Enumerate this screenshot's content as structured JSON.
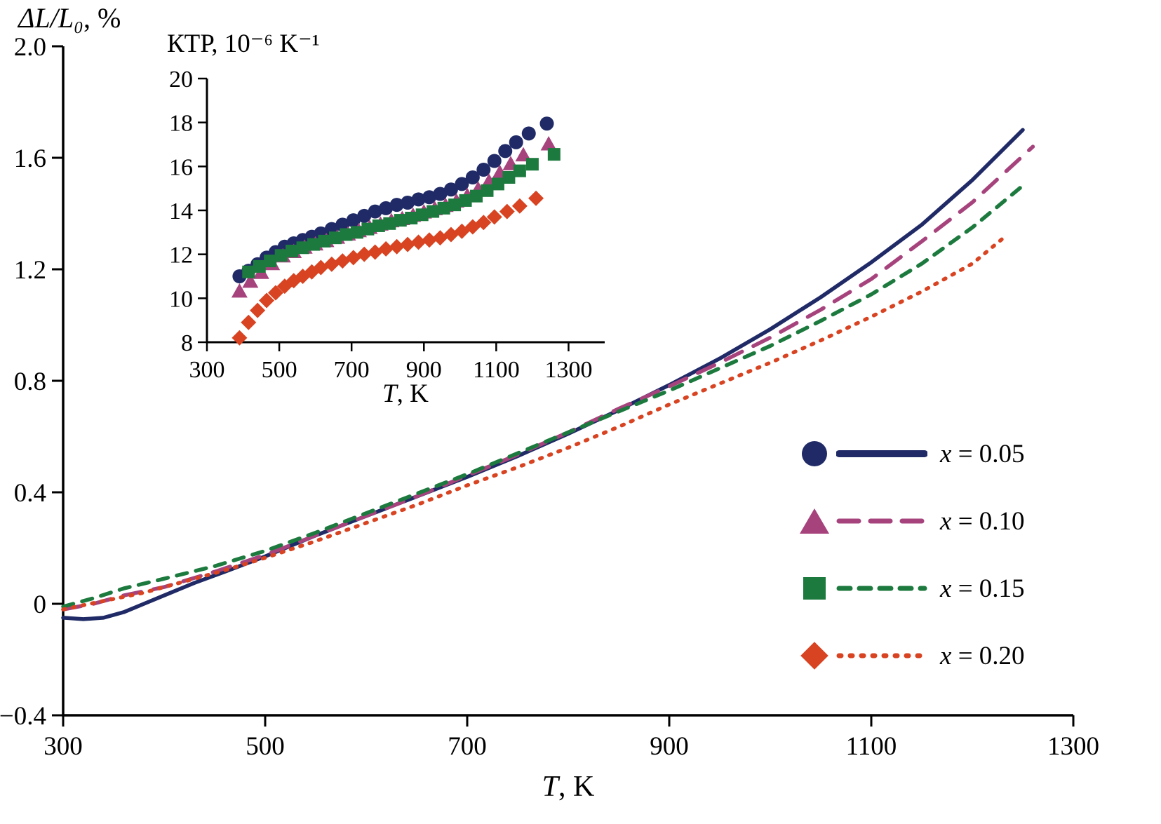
{
  "labels": {
    "main_ylabel_var": "ΔL/L₀",
    "main_ylabel_rest": ", %",
    "main_xlabel_var": "T",
    "main_xlabel_rest": ", K",
    "inset_title": "КТР, 10⁻⁶ K⁻¹",
    "inset_xlabel_var": "T",
    "inset_xlabel_rest": ", K"
  },
  "legend": {
    "items": [
      {
        "var": "x",
        "rest": " = 0.05",
        "marker": "circle",
        "color": "#1f2a66",
        "dash": "",
        "line_width": 10
      },
      {
        "var": "x",
        "rest": " = 0.10",
        "marker": "triangle",
        "color": "#a6437d",
        "dash": "28 17",
        "line_width": 7
      },
      {
        "var": "x",
        "rest": " = 0.15",
        "marker": "square",
        "color": "#1d7a3e",
        "dash": "16 13",
        "line_width": 7
      },
      {
        "var": "x",
        "rest": " = 0.20",
        "marker": "diamond",
        "color": "#d84321",
        "dash": "3 13",
        "line_width": 7
      }
    ]
  },
  "chart_data": [
    {
      "type": "line",
      "title": "",
      "xlabel": "T, K",
      "ylabel": "ΔL/L₀, %",
      "xlim": [
        300,
        1300
      ],
      "ylim": [
        -0.4,
        2.0
      ],
      "grid": false,
      "legend_position": "right-middle",
      "xticks": [
        300,
        500,
        700,
        900,
        1100,
        1300
      ],
      "xtick_labels": [
        "300",
        "500",
        "700",
        "900",
        "1100",
        "1300"
      ],
      "yticks": [
        -0.4,
        0,
        0.4,
        0.8,
        1.2,
        1.6,
        2.0
      ],
      "ytick_labels": [
        "−0.4",
        "0",
        "0.4",
        "0.8",
        "1.2",
        "1.6",
        "2.0"
      ],
      "series": [
        {
          "name": "x = 0.05",
          "color": "#1f2a66",
          "style": "solid",
          "width": 5.5,
          "dash": "",
          "points": [
            [
              300,
              -0.05
            ],
            [
              320,
              -0.055
            ],
            [
              340,
              -0.05
            ],
            [
              360,
              -0.03
            ],
            [
              380,
              0.0
            ],
            [
              400,
              0.03
            ],
            [
              430,
              0.075
            ],
            [
              460,
              0.115
            ],
            [
              500,
              0.17
            ],
            [
              550,
              0.245
            ],
            [
              600,
              0.315
            ],
            [
              650,
              0.385
            ],
            [
              700,
              0.455
            ],
            [
              750,
              0.53
            ],
            [
              800,
              0.61
            ],
            [
              850,
              0.695
            ],
            [
              900,
              0.785
            ],
            [
              950,
              0.88
            ],
            [
              1000,
              0.985
            ],
            [
              1050,
              1.1
            ],
            [
              1100,
              1.225
            ],
            [
              1150,
              1.36
            ],
            [
              1200,
              1.52
            ],
            [
              1250,
              1.7
            ]
          ]
        },
        {
          "name": "x = 0.10",
          "color": "#a6437d",
          "style": "dashed",
          "width": 5.5,
          "dash": "26 18",
          "points": [
            [
              300,
              -0.02
            ],
            [
              330,
              0.0
            ],
            [
              360,
              0.03
            ],
            [
              400,
              0.06
            ],
            [
              450,
              0.115
            ],
            [
              500,
              0.175
            ],
            [
              550,
              0.245
            ],
            [
              600,
              0.315
            ],
            [
              650,
              0.385
            ],
            [
              700,
              0.46
            ],
            [
              750,
              0.535
            ],
            [
              800,
              0.615
            ],
            [
              850,
              0.7
            ],
            [
              900,
              0.78
            ],
            [
              950,
              0.865
            ],
            [
              1000,
              0.955
            ],
            [
              1050,
              1.055
            ],
            [
              1100,
              1.165
            ],
            [
              1150,
              1.3
            ],
            [
              1200,
              1.44
            ],
            [
              1260,
              1.64
            ]
          ]
        },
        {
          "name": "x = 0.15",
          "color": "#1d7a3e",
          "style": "dashed",
          "width": 5.5,
          "dash": "15 13",
          "points": [
            [
              300,
              -0.01
            ],
            [
              330,
              0.02
            ],
            [
              360,
              0.055
            ],
            [
              400,
              0.09
            ],
            [
              450,
              0.135
            ],
            [
              500,
              0.19
            ],
            [
              550,
              0.255
            ],
            [
              600,
              0.325
            ],
            [
              650,
              0.395
            ],
            [
              700,
              0.465
            ],
            [
              750,
              0.54
            ],
            [
              800,
              0.615
            ],
            [
              850,
              0.69
            ],
            [
              900,
              0.765
            ],
            [
              950,
              0.845
            ],
            [
              1000,
              0.925
            ],
            [
              1050,
              1.015
            ],
            [
              1100,
              1.11
            ],
            [
              1150,
              1.22
            ],
            [
              1200,
              1.35
            ],
            [
              1250,
              1.5
            ]
          ]
        },
        {
          "name": "x = 0.20",
          "color": "#d84321",
          "style": "dotted",
          "width": 5.5,
          "dash": "3 11",
          "points": [
            [
              300,
              -0.02
            ],
            [
              340,
              0.01
            ],
            [
              380,
              0.04
            ],
            [
              420,
              0.08
            ],
            [
              460,
              0.12
            ],
            [
              500,
              0.165
            ],
            [
              550,
              0.225
            ],
            [
              600,
              0.29
            ],
            [
              650,
              0.355
            ],
            [
              700,
              0.425
            ],
            [
              750,
              0.49
            ],
            [
              800,
              0.56
            ],
            [
              850,
              0.635
            ],
            [
              900,
              0.715
            ],
            [
              950,
              0.79
            ],
            [
              1000,
              0.865
            ],
            [
              1050,
              0.945
            ],
            [
              1100,
              1.03
            ],
            [
              1150,
              1.12
            ],
            [
              1200,
              1.22
            ],
            [
              1230,
              1.31
            ]
          ]
        }
      ]
    },
    {
      "type": "scatter",
      "title": "КТР, 10⁻⁶ K⁻¹",
      "xlabel": "T, K",
      "ylabel": "КТР, 10⁻⁶ K⁻¹",
      "xlim": [
        300,
        1400
      ],
      "ylim": [
        8,
        20
      ],
      "grid": false,
      "xticks": [
        300,
        500,
        700,
        900,
        1100,
        1300
      ],
      "xtick_labels": [
        "300",
        "500",
        "700",
        "900",
        "1100",
        "1300"
      ],
      "yticks": [
        8,
        10,
        12,
        14,
        16,
        18,
        20
      ],
      "ytick_labels": [
        "8",
        "10",
        "12",
        "14",
        "16",
        "18",
        "20"
      ],
      "series": [
        {
          "name": "x = 0.05",
          "color": "#1f2a66",
          "marker": "circle",
          "points": [
            [
              390,
              11.0
            ],
            [
              415,
              11.25
            ],
            [
              440,
              11.55
            ],
            [
              465,
              11.85
            ],
            [
              490,
              12.1
            ],
            [
              515,
              12.35
            ],
            [
              540,
              12.5
            ],
            [
              565,
              12.65
            ],
            [
              590,
              12.8
            ],
            [
              615,
              12.95
            ],
            [
              645,
              13.15
            ],
            [
              675,
              13.35
            ],
            [
              705,
              13.55
            ],
            [
              735,
              13.75
            ],
            [
              765,
              13.95
            ],
            [
              795,
              14.1
            ],
            [
              825,
              14.25
            ],
            [
              855,
              14.35
            ],
            [
              885,
              14.5
            ],
            [
              915,
              14.6
            ],
            [
              945,
              14.75
            ],
            [
              975,
              14.95
            ],
            [
              1005,
              15.2
            ],
            [
              1035,
              15.5
            ],
            [
              1065,
              15.85
            ],
            [
              1095,
              16.25
            ],
            [
              1125,
              16.7
            ],
            [
              1155,
              17.1
            ],
            [
              1190,
              17.5
            ],
            [
              1240,
              17.95
            ]
          ]
        },
        {
          "name": "x = 0.10",
          "color": "#a6437d",
          "marker": "triangle",
          "points": [
            [
              390,
              10.3
            ],
            [
              420,
              10.75
            ],
            [
              450,
              11.15
            ],
            [
              480,
              11.55
            ],
            [
              510,
              11.9
            ],
            [
              540,
              12.1
            ],
            [
              570,
              12.3
            ],
            [
              600,
              12.45
            ],
            [
              630,
              12.6
            ],
            [
              660,
              12.75
            ],
            [
              690,
              12.9
            ],
            [
              720,
              13.05
            ],
            [
              750,
              13.2
            ],
            [
              780,
              13.35
            ],
            [
              810,
              13.5
            ],
            [
              840,
              13.6
            ],
            [
              870,
              13.75
            ],
            [
              900,
              13.9
            ],
            [
              930,
              14.05
            ],
            [
              960,
              14.2
            ],
            [
              990,
              14.4
            ],
            [
              1020,
              14.65
            ],
            [
              1050,
              14.95
            ],
            [
              1080,
              15.3
            ],
            [
              1110,
              15.7
            ],
            [
              1140,
              16.1
            ],
            [
              1175,
              16.5
            ],
            [
              1245,
              17.0
            ]
          ]
        },
        {
          "name": "x = 0.15",
          "color": "#1d7a3e",
          "marker": "square",
          "points": [
            [
              415,
              11.2
            ],
            [
              445,
              11.45
            ],
            [
              475,
              11.7
            ],
            [
              505,
              11.95
            ],
            [
              535,
              12.15
            ],
            [
              565,
              12.3
            ],
            [
              595,
              12.45
            ],
            [
              625,
              12.6
            ],
            [
              655,
              12.75
            ],
            [
              685,
              12.9
            ],
            [
              715,
              13.0
            ],
            [
              745,
              13.15
            ],
            [
              775,
              13.3
            ],
            [
              805,
              13.4
            ],
            [
              835,
              13.55
            ],
            [
              865,
              13.65
            ],
            [
              895,
              13.8
            ],
            [
              925,
              13.95
            ],
            [
              955,
              14.1
            ],
            [
              985,
              14.25
            ],
            [
              1015,
              14.45
            ],
            [
              1045,
              14.65
            ],
            [
              1075,
              14.9
            ],
            [
              1105,
              15.2
            ],
            [
              1135,
              15.5
            ],
            [
              1165,
              15.8
            ],
            [
              1200,
              16.1
            ],
            [
              1260,
              16.55
            ]
          ]
        },
        {
          "name": "x = 0.20",
          "color": "#d84321",
          "marker": "diamond",
          "points": [
            [
              390,
              8.2
            ],
            [
              415,
              8.9
            ],
            [
              440,
              9.45
            ],
            [
              465,
              9.9
            ],
            [
              490,
              10.25
            ],
            [
              515,
              10.55
            ],
            [
              540,
              10.8
            ],
            [
              565,
              11.0
            ],
            [
              590,
              11.2
            ],
            [
              615,
              11.4
            ],
            [
              645,
              11.55
            ],
            [
              675,
              11.7
            ],
            [
              705,
              11.85
            ],
            [
              735,
              12.0
            ],
            [
              765,
              12.1
            ],
            [
              795,
              12.25
            ],
            [
              825,
              12.35
            ],
            [
              855,
              12.45
            ],
            [
              885,
              12.55
            ],
            [
              915,
              12.65
            ],
            [
              945,
              12.75
            ],
            [
              975,
              12.9
            ],
            [
              1005,
              13.05
            ],
            [
              1035,
              13.25
            ],
            [
              1065,
              13.45
            ],
            [
              1095,
              13.7
            ],
            [
              1130,
              13.95
            ],
            [
              1165,
              14.2
            ],
            [
              1210,
              14.55
            ]
          ]
        }
      ]
    }
  ]
}
